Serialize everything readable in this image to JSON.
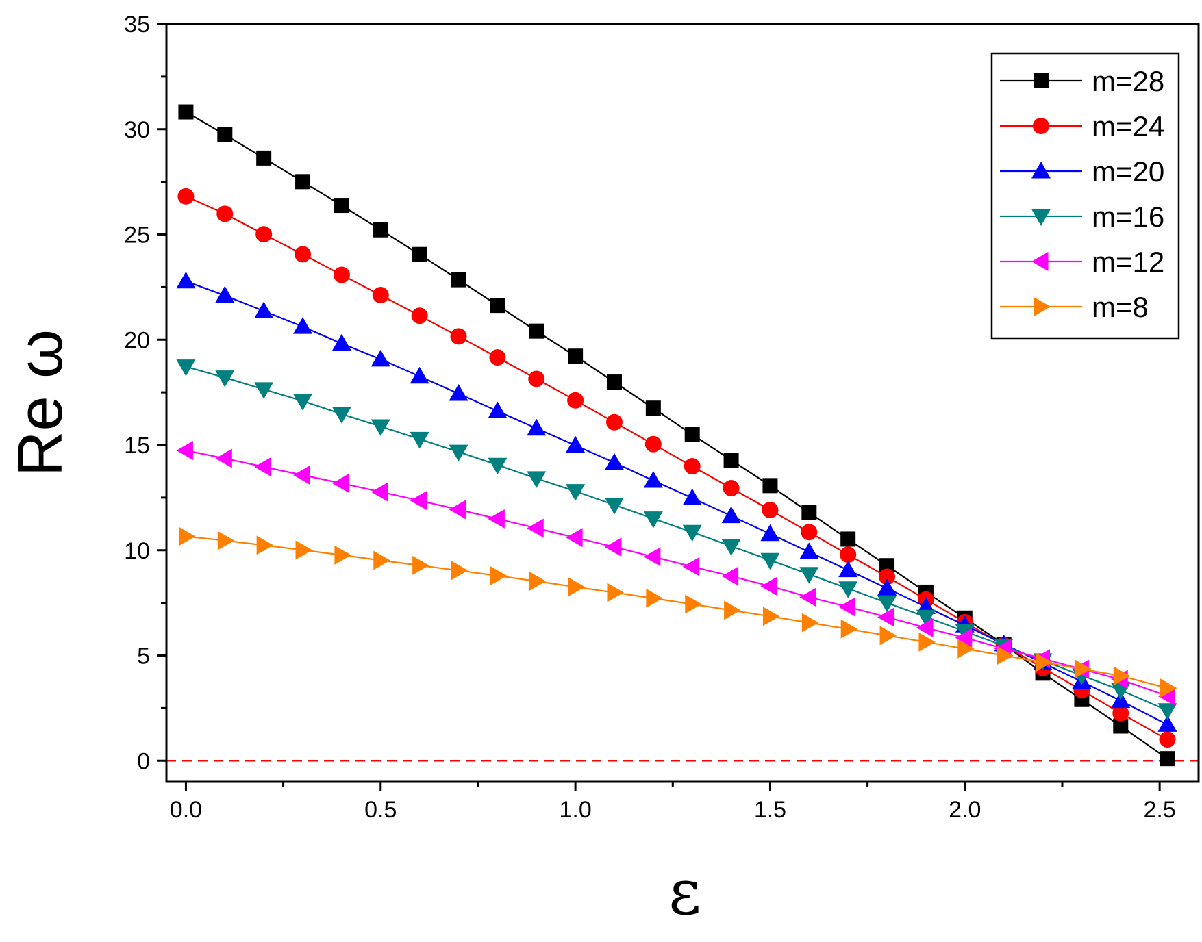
{
  "chart_data": {
    "type": "line",
    "xlabel": "ε",
    "ylabel": "Re ω",
    "xlim": [
      -0.05,
      2.6
    ],
    "ylim": [
      -1,
      35
    ],
    "xticks": [
      "0.0",
      "0.5",
      "1.0",
      "1.5",
      "2.0",
      "2.5"
    ],
    "yticks": [
      "0",
      "5",
      "10",
      "15",
      "20",
      "25",
      "30",
      "35"
    ],
    "grid": false,
    "legend_position": "top-right",
    "reference_line": {
      "y": 0,
      "style": "dashed",
      "color": "#ff0000"
    },
    "x": [
      0.0,
      0.1,
      0.2,
      0.3,
      0.4,
      0.5,
      0.6,
      0.7,
      0.8,
      0.9,
      1.0,
      1.1,
      1.2,
      1.3,
      1.4,
      1.5,
      1.6,
      1.7,
      1.8,
      1.9,
      2.0,
      2.1,
      2.2,
      2.3,
      2.4,
      2.52
    ],
    "series": [
      {
        "name": "m=28",
        "color": "#000000",
        "marker": "square",
        "values": [
          30.82,
          29.74,
          28.63,
          27.51,
          26.38,
          25.22,
          24.05,
          22.85,
          21.63,
          20.41,
          19.22,
          17.99,
          16.75,
          15.5,
          14.28,
          13.07,
          11.79,
          10.53,
          9.27,
          8.01,
          6.78,
          5.53,
          4.16,
          2.91,
          1.65,
          0.1
        ]
      },
      {
        "name": "m=24",
        "color": "#ff0000",
        "marker": "circle",
        "values": [
          26.81,
          25.98,
          25.01,
          24.06,
          23.08,
          22.12,
          21.14,
          20.16,
          19.16,
          18.14,
          17.12,
          16.08,
          15.04,
          13.99,
          12.95,
          11.91,
          10.86,
          9.79,
          8.74,
          7.66,
          6.58,
          5.49,
          4.41,
          3.35,
          2.26,
          1.01
        ]
      },
      {
        "name": "m=20",
        "color": "#0000ff",
        "marker": "triangle-up",
        "values": [
          22.78,
          22.1,
          21.36,
          20.62,
          19.82,
          19.07,
          18.26,
          17.44,
          16.61,
          15.79,
          14.98,
          14.16,
          13.31,
          12.48,
          11.63,
          10.78,
          9.92,
          9.06,
          8.19,
          7.31,
          6.44,
          5.54,
          4.65,
          3.76,
          2.85,
          1.72
        ]
      },
      {
        "name": "m=16",
        "color": "#00807f",
        "marker": "triangle-down",
        "values": [
          18.72,
          18.2,
          17.64,
          17.09,
          16.47,
          15.88,
          15.28,
          14.67,
          14.05,
          13.41,
          12.8,
          12.15,
          11.5,
          10.86,
          10.19,
          9.53,
          8.86,
          8.18,
          7.5,
          6.83,
          6.14,
          5.46,
          4.76,
          4.05,
          3.35,
          2.39
        ]
      },
      {
        "name": "m=12",
        "color": "#ff00ff",
        "marker": "triangle-left",
        "values": [
          14.74,
          14.36,
          13.96,
          13.57,
          13.18,
          12.77,
          12.36,
          11.93,
          11.49,
          11.05,
          10.6,
          10.15,
          9.69,
          9.22,
          8.77,
          8.29,
          7.77,
          7.31,
          6.82,
          6.32,
          5.84,
          5.33,
          4.85,
          4.35,
          3.86,
          3.07
        ]
      },
      {
        "name": "m=8",
        "color": "#ff8000",
        "marker": "triangle-right",
        "values": [
          10.66,
          10.46,
          10.24,
          10.01,
          9.77,
          9.52,
          9.28,
          9.04,
          8.79,
          8.53,
          8.26,
          7.99,
          7.72,
          7.44,
          7.15,
          6.86,
          6.56,
          6.26,
          5.95,
          5.64,
          5.32,
          5.0,
          4.68,
          4.36,
          4.03,
          3.45
        ]
      }
    ]
  }
}
